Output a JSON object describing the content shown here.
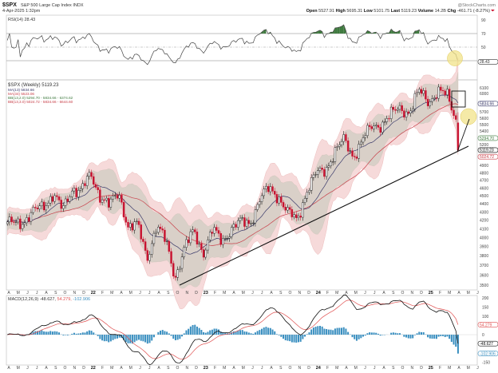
{
  "header": {
    "symbol": "$SPX",
    "name": "S&P 500 Large Cap Index",
    "exchange": "INDX",
    "date": "4-Apr-2025 1:32pm",
    "brand": "@StockCharts.com",
    "open_label": "Open",
    "open": "5527.91",
    "high_label": "High",
    "high": "5695.31",
    "low_label": "Low",
    "low": "5101.75",
    "last_label": "Last",
    "last": "5119.23",
    "volume_label": "Volume",
    "volume": "14.2B",
    "chg_label": "Chg",
    "chg": "-461.71 (-8.27%)"
  },
  "colors": {
    "up_candle": "#000000",
    "down_candle": "#c8102e",
    "ma13": "#3a3a6a",
    "ma34": "#c8404a",
    "bb_inner": "#d9d0c8",
    "bb_outer": "#f6dada",
    "rsi_overbought_fill": "#3f7a3f",
    "macd_line": "#111111",
    "macd_signal": "#e05050",
    "macd_hist": "#3a8fc0",
    "highlight": "#f2e38a",
    "annotation": "#111111"
  },
  "chart_data": [
    {
      "type": "line",
      "panel": "rsi",
      "legend": "RSI(14) 28.43",
      "last_value": "28.43",
      "yticks": [
        "90",
        "70",
        "50"
      ],
      "ylim": [
        10,
        100
      ],
      "reference_lines": [
        70,
        50,
        30
      ]
    },
    {
      "type": "candlestick",
      "panel": "price",
      "scale": "log",
      "frequency": "weekly",
      "legend": [
        "$SPX (Weekly) 5119.23",
        "MA(13) 5834.66",
        "MA(34) 5523.06",
        "BB(13,2.0) 5294.70 - 5834.66 - 6374.62",
        "BB(13,3.0) 5024.72 - 5834.66 - 6644.60"
      ],
      "x_start": "Apr 2021",
      "monthly_closes": {
        "months": [
          "Apr 21",
          "May 21",
          "Jun 21",
          "Jul 21",
          "Aug 21",
          "Sep 21",
          "Oct 21",
          "Nov 21",
          "Dec 21",
          "Jan 22",
          "Feb 22",
          "Mar 22",
          "Apr 22",
          "May 22",
          "Jun 22",
          "Jul 22",
          "Aug 22",
          "Sep 22",
          "Oct 22",
          "Nov 22",
          "Dec 22",
          "Jan 23",
          "Feb 23",
          "Mar 23",
          "Apr 23",
          "May 23",
          "Jun 23",
          "Jul 23",
          "Aug 23",
          "Sep 23",
          "Oct 23",
          "Nov 23",
          "Dec 23",
          "Jan 24",
          "Feb 24",
          "Mar 24",
          "Apr 24",
          "May 24",
          "Jun 24",
          "Jul 24",
          "Aug 24",
          "Sep 24",
          "Oct 24",
          "Nov 24",
          "Dec 24",
          "Jan 25",
          "Feb 25",
          "Mar 25",
          "Apr 25"
        ],
        "values": [
          4181,
          4204,
          4298,
          4395,
          4523,
          4308,
          4605,
          4567,
          4766,
          4516,
          4374,
          4530,
          4132,
          4132,
          3785,
          4130,
          3955,
          3586,
          3872,
          4080,
          3840,
          4077,
          3970,
          4109,
          4169,
          4180,
          4450,
          4589,
          4508,
          4288,
          4194,
          4568,
          4770,
          4846,
          5096,
          5254,
          5036,
          5278,
          5460,
          5522,
          5648,
          5762,
          5705,
          6032,
          5882,
          6041,
          5955,
          5581,
          5119.23
        ]
      },
      "last_week": {
        "open": 5527.91,
        "high": 5695.31,
        "low": 5101.75,
        "close": 5119.23
      },
      "ylim": [
        3500,
        6100
      ],
      "yticks": [
        "6100",
        "6000",
        "5900",
        "5800",
        "5700",
        "5600",
        "5500",
        "5400",
        "5300",
        "5200",
        "5100",
        "5000",
        "4900",
        "4800",
        "4700",
        "4600",
        "4500",
        "4400",
        "4300",
        "4200",
        "4100",
        "4000",
        "3900",
        "3800",
        "3700",
        "3600",
        "3500"
      ],
      "value_badges": [
        {
          "text": "5834.66",
          "value": 5834.66,
          "color": "#3a3a6a"
        },
        {
          "text": "5294.70",
          "value": 5294.7,
          "color": "#3f7a3f"
        },
        {
          "text": "5119.23",
          "value": 5119.23,
          "color": "#000000"
        },
        {
          "text": "5024.72",
          "value": 5024.72,
          "color": "#c8404a"
        }
      ],
      "xticks": [
        "A",
        "M",
        "J",
        "J",
        "A",
        "S",
        "O",
        "N",
        "D",
        "22",
        "F",
        "M",
        "A",
        "M",
        "J",
        "J",
        "A",
        "S",
        "O",
        "N",
        "D",
        "23",
        "F",
        "M",
        "A",
        "M",
        "J",
        "J",
        "A",
        "S",
        "O",
        "N",
        "D",
        "24",
        "F",
        "M",
        "A",
        "M",
        "J",
        "J",
        "A",
        "S",
        "O",
        "N",
        "D",
        "25",
        "F",
        "M",
        "A",
        "M",
        "J"
      ]
    },
    {
      "type": "line",
      "panel": "macd",
      "legend_main": "MACD(12,26,9) -48.627,",
      "legend_signal": "54.279,",
      "legend_hist": "-102.906",
      "yticks": [
        "200",
        "150",
        "100",
        "0",
        "-150"
      ],
      "ylim": [
        -160,
        210
      ],
      "value_badges": [
        {
          "text": "54.279",
          "value": 54.279,
          "color": "#e05050"
        },
        {
          "text": "-48.627",
          "value": -48.627,
          "color": "#111111"
        },
        {
          "text": "-102.906",
          "value": -102.906,
          "color": "#3a8fc0"
        }
      ]
    }
  ]
}
